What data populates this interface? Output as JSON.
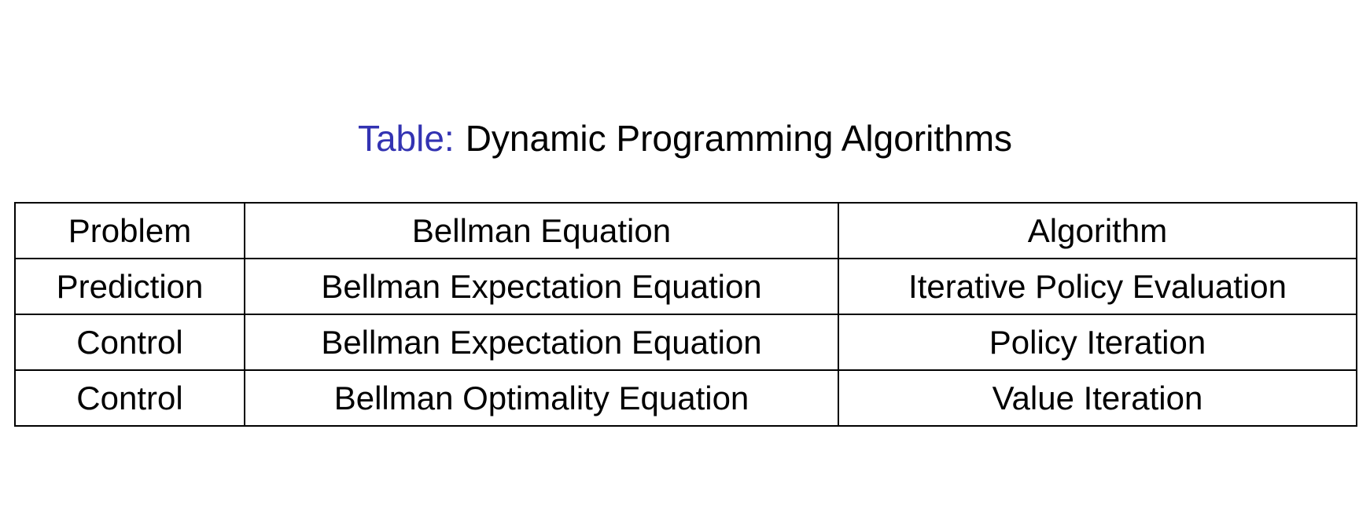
{
  "caption": {
    "prefix": "Table:",
    "title": "Dynamic Programming Algorithms",
    "prefix_color": "#3333b2"
  },
  "chart_data": {
    "type": "table",
    "title": "Dynamic Programming Algorithms",
    "headers": [
      "Problem",
      "Bellman Equation",
      "Algorithm"
    ],
    "rows": [
      [
        "Prediction",
        "Bellman Expectation Equation",
        "Iterative Policy Evaluation"
      ],
      [
        "Control",
        "Bellman Expectation Equation",
        "Policy Iteration"
      ],
      [
        "Control",
        "Bellman Optimality Equation",
        "Value Iteration"
      ]
    ]
  },
  "colors": {
    "background": "#ffffff",
    "text": "#000000",
    "accent_blue": "#3333b2",
    "table_border": "#000000"
  }
}
